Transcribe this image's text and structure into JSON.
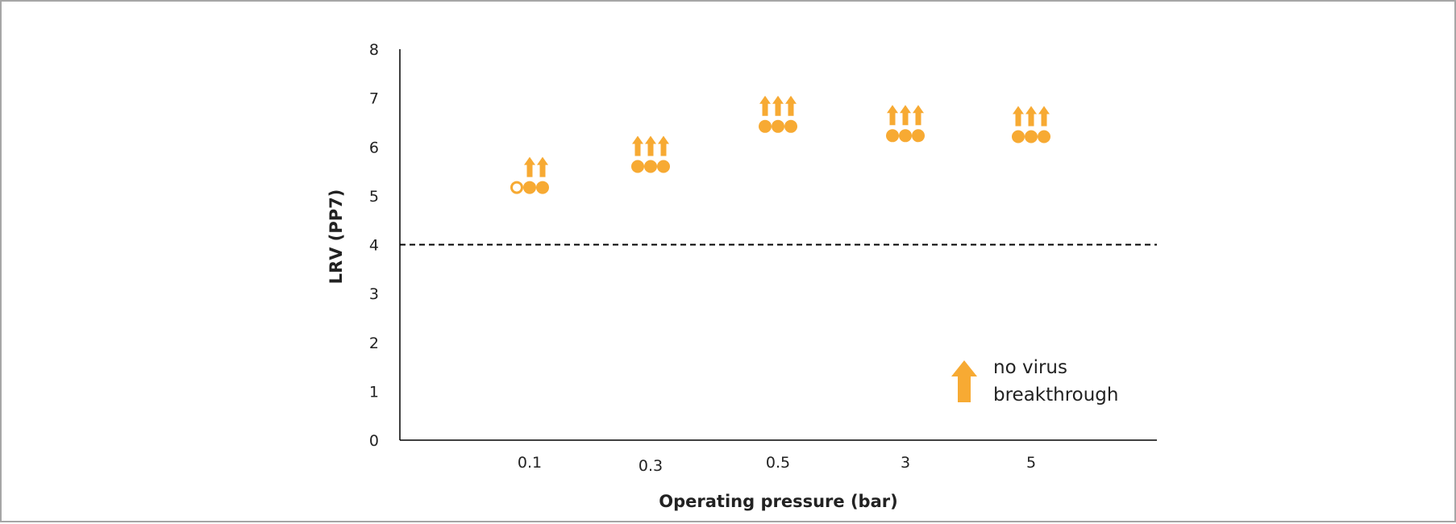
{
  "chart_data": {
    "type": "scatter",
    "title": "",
    "xlabel": "Operating pressure (bar)",
    "ylabel": "LRV (PP7)",
    "categories": [
      "0.1",
      "0.3",
      "0.5",
      "3",
      "5"
    ],
    "ylim": [
      0,
      8
    ],
    "yticks": [
      "0",
      "1",
      "2",
      "3",
      "4",
      "5",
      "6",
      "7",
      "8"
    ],
    "grid": false,
    "threshold": {
      "value": 4,
      "style": "dashed",
      "color": "#000000"
    },
    "marker_color": "#F7AA33",
    "series": [
      {
        "replicates": [
          {
            "category": "0.1",
            "lrv": 5.17,
            "no_breakthrough": false,
            "marker": "open-circle"
          },
          {
            "category": "0.1",
            "lrv": 5.17,
            "no_breakthrough": true,
            "marker": "filled-circle"
          },
          {
            "category": "0.1",
            "lrv": 5.17,
            "no_breakthrough": true,
            "marker": "filled-circle"
          },
          {
            "category": "0.3",
            "lrv": 5.6,
            "no_breakthrough": true,
            "marker": "filled-circle"
          },
          {
            "category": "0.3",
            "lrv": 5.6,
            "no_breakthrough": true,
            "marker": "filled-circle"
          },
          {
            "category": "0.3",
            "lrv": 5.6,
            "no_breakthrough": true,
            "marker": "filled-circle"
          },
          {
            "category": "0.5",
            "lrv": 6.42,
            "no_breakthrough": true,
            "marker": "filled-circle"
          },
          {
            "category": "0.5",
            "lrv": 6.42,
            "no_breakthrough": true,
            "marker": "filled-circle"
          },
          {
            "category": "0.5",
            "lrv": 6.42,
            "no_breakthrough": true,
            "marker": "filled-circle"
          },
          {
            "category": "3",
            "lrv": 6.23,
            "no_breakthrough": true,
            "marker": "filled-circle"
          },
          {
            "category": "3",
            "lrv": 6.23,
            "no_breakthrough": true,
            "marker": "filled-circle"
          },
          {
            "category": "3",
            "lrv": 6.23,
            "no_breakthrough": true,
            "marker": "filled-circle"
          },
          {
            "category": "5",
            "lrv": 6.21,
            "no_breakthrough": true,
            "marker": "filled-circle"
          },
          {
            "category": "5",
            "lrv": 6.21,
            "no_breakthrough": true,
            "marker": "filled-circle"
          },
          {
            "category": "5",
            "lrv": 6.21,
            "no_breakthrough": true,
            "marker": "filled-circle"
          }
        ]
      }
    ],
    "legend": {
      "placement": "bottom-right",
      "icon": "up-arrow-icon",
      "lines": [
        "no virus",
        "breakthrough"
      ]
    }
  }
}
